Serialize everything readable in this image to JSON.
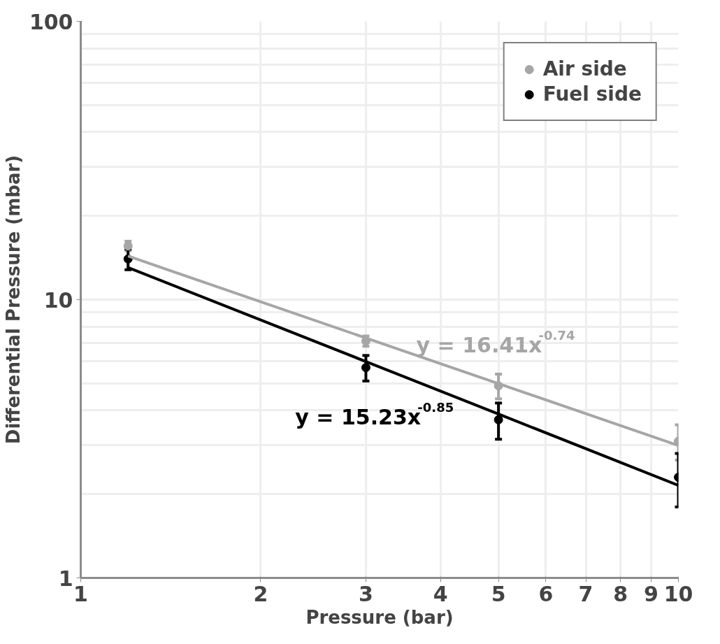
{
  "chart_data": {
    "type": "scatter",
    "xlabel": "Pressure (bar)",
    "ylabel": "Differential Pressure (mbar)",
    "log": "xy",
    "xlim": [
      1,
      10
    ],
    "ylim": [
      1,
      100
    ],
    "xticks": [
      1,
      2,
      3,
      4,
      5,
      6,
      7,
      8,
      9,
      10
    ],
    "yticks": [
      1,
      10,
      100
    ],
    "grid": true,
    "legend": "top right",
    "marker": "circle",
    "x": [
      1.2,
      3,
      5,
      10
    ],
    "series": [
      {
        "name": "Air side",
        "color": "#a6a6a6",
        "values": [
          15.6,
          7.1,
          4.9,
          3.1
        ],
        "errors": [
          0.6,
          0.3,
          0.5,
          0.45
        ]
      },
      {
        "name": "Fuel side",
        "color": "#000000",
        "values": [
          14.0,
          5.7,
          3.7,
          2.3
        ],
        "errors": [
          1.2,
          0.6,
          0.55,
          0.5
        ]
      },
      {
        "type": "line",
        "marker": "none",
        "color": "#a6a6a6",
        "values": [
          14.34,
          7.28,
          4.99,
          2.99
        ]
      },
      {
        "type": "line",
        "marker": "none",
        "color": "#000000",
        "values": [
          13.04,
          5.99,
          3.88,
          2.15
        ]
      }
    ],
    "annotations": [
      "y = 16.41x$^{-0.74}$",
      "y = 15.23x$^{-0.85}$"
    ]
  }
}
